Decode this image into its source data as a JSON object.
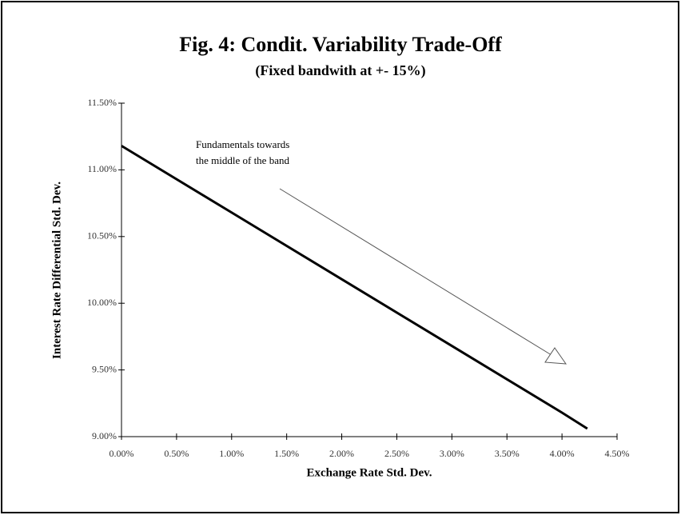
{
  "chart_data": {
    "type": "line",
    "title": "Fig. 4: Condit. Variability Trade-Off",
    "subtitle": "(Fixed bandwith at +- 15%)",
    "x_label": "Exchange Rate Std. Dev.",
    "y_label": "Interest Rate Differential Std. Dev.",
    "annotation": [
      "Fundamentals towards",
      "the middle of the band"
    ],
    "x": [
      0,
      1,
      2,
      3,
      4,
      4.23
    ],
    "series": [
      {
        "color": "#000000",
        "values": [
          11.18,
          10.68,
          10.18,
          9.68,
          9.18,
          9.06
        ]
      }
    ],
    "xlim": [
      0,
      4.5
    ],
    "xticks": [
      {
        "value": 0,
        "label": "0.00%"
      },
      {
        "value": 0.5,
        "label": "0.50%"
      },
      {
        "value": 1,
        "label": "1.00%"
      },
      {
        "value": 1.5,
        "label": "1.50%"
      },
      {
        "value": 2,
        "label": "2.00%"
      },
      {
        "value": 2.5,
        "label": "2.50%"
      },
      {
        "value": 3,
        "label": "3.00%"
      },
      {
        "value": 3.5,
        "label": "3.50%"
      },
      {
        "value": 4,
        "label": "4.00%"
      },
      {
        "value": 4.5,
        "label": "4.50%"
      }
    ],
    "ylim": [
      9,
      11.5
    ],
    "yticks": [
      {
        "value": 9,
        "label": "9.00%"
      },
      {
        "value": 9.5,
        "label": "9.50%"
      },
      {
        "value": 10,
        "label": "10.00%"
      },
      {
        "value": 10.5,
        "label": "10.50%"
      },
      {
        "value": 11,
        "label": "11.00%"
      },
      {
        "value": 11.5,
        "label": "11.50%"
      }
    ],
    "grid": false
  }
}
